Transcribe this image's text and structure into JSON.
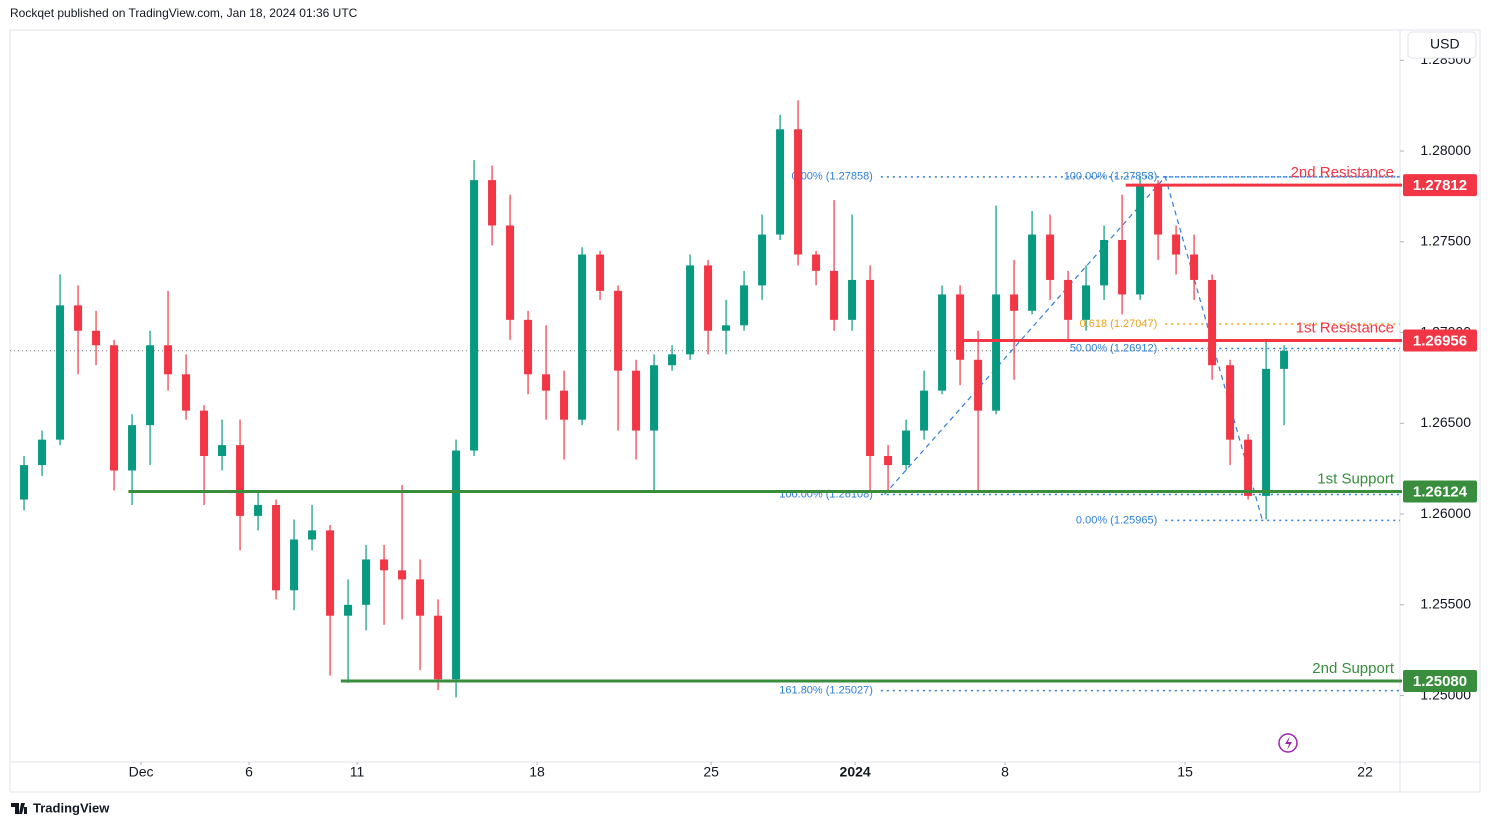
{
  "chart_data": {
    "type": "candlestick",
    "header": "Rockqet published on TradingView.com, Jan 18, 2024 01:36 UTC",
    "currency": "USD",
    "footer": "TradingView",
    "up_color": "#089981",
    "down_color": "#f23645",
    "xlim": [
      -0.78,
      76.44
    ],
    "xticks": [
      {
        "value": 6.5,
        "label": "Dec"
      },
      {
        "value": 12.5,
        "label": "6"
      },
      {
        "value": 18.5,
        "label": "11"
      },
      {
        "value": 28.5,
        "label": "18"
      },
      {
        "value": 38.17,
        "label": "25"
      },
      {
        "value": 46.17,
        "label": "2024"
      },
      {
        "value": 54.5,
        "label": "8"
      },
      {
        "value": 64.5,
        "label": "15"
      },
      {
        "value": 74.5,
        "label": "22"
      }
    ],
    "ylim": [
      1.24634,
      1.28667
    ],
    "yticks": [
      {
        "value": 1.25,
        "label": "1.25000"
      },
      {
        "value": 1.255,
        "label": "1.25500"
      },
      {
        "value": 1.26,
        "label": "1.26000"
      },
      {
        "value": 1.265,
        "label": "1.26500"
      },
      {
        "value": 1.27,
        "label": "1.27000"
      },
      {
        "value": 1.275,
        "label": "1.27500"
      },
      {
        "value": 1.28,
        "label": "1.28000"
      },
      {
        "value": 1.285,
        "label": "1.28500"
      }
    ],
    "open": [
      1.2608,
      1.2627,
      1.2641,
      1.2715,
      1.2701,
      1.2693,
      1.2624,
      1.2649,
      1.2693,
      1.2677,
      1.2657,
      1.2632,
      1.2638,
      1.2599,
      1.2605,
      1.2558,
      1.2586,
      1.2591,
      1.2544,
      1.255,
      1.2575,
      1.2569,
      1.2564,
      1.2544,
      1.2509,
      1.2635,
      1.2784,
      1.2759,
      1.2707,
      1.2677,
      1.2668,
      1.2652,
      1.2743,
      1.2723,
      1.2679,
      1.2646,
      1.2682,
      1.2688,
      1.2737,
      1.2701,
      1.2704,
      1.2726,
      1.2754,
      1.2812,
      1.2743,
      1.2734,
      1.2707,
      1.2729,
      1.2632,
      1.2627,
      1.2646,
      1.2668,
      1.2721,
      1.2685,
      1.2657,
      1.2721,
      1.2712,
      1.2754,
      1.2729,
      1.2707,
      1.2726,
      1.2751,
      1.2721,
      1.2781,
      1.2754,
      1.2743,
      1.2729,
      1.2682,
      1.2641,
      1.261,
      1.268
    ],
    "high": [
      1.2632,
      1.2646,
      1.2732,
      1.2726,
      1.2712,
      1.2696,
      1.2655,
      1.2701,
      1.2723,
      1.2688,
      1.266,
      1.2652,
      1.2652,
      1.2613,
      1.2608,
      1.2597,
      1.2605,
      1.2594,
      1.2564,
      1.2583,
      1.2583,
      1.2616,
      1.2575,
      1.2553,
      1.2641,
      1.2795,
      1.2792,
      1.2776,
      1.2712,
      1.2704,
      1.2679,
      1.2747,
      1.2745,
      1.2726,
      1.2685,
      1.2688,
      1.2693,
      1.2743,
      1.274,
      1.2718,
      1.2734,
      1.2765,
      1.282,
      1.2828,
      1.2745,
      1.2773,
      1.2765,
      1.2737,
      1.2638,
      1.2652,
      1.2679,
      1.2726,
      1.2726,
      1.2701,
      1.277,
      1.274,
      1.2767,
      1.2765,
      1.2734,
      1.2737,
      1.2759,
      1.2776,
      1.2785,
      1.2784,
      1.2759,
      1.2754,
      1.2732,
      1.2685,
      1.2644,
      1.2696,
      1.2693
    ],
    "low": [
      1.2602,
      1.2621,
      1.2638,
      1.2677,
      1.2682,
      1.2613,
      1.2605,
      1.2627,
      1.2668,
      1.2652,
      1.2605,
      1.2624,
      1.258,
      1.2591,
      1.2553,
      1.2547,
      1.258,
      1.2511,
      1.2507,
      1.2536,
      1.2539,
      1.2542,
      1.2514,
      1.2503,
      1.2499,
      1.2632,
      1.2748,
      1.2696,
      1.2666,
      1.2652,
      1.263,
      1.2649,
      1.2718,
      1.2646,
      1.263,
      1.2613,
      1.2679,
      1.2685,
      1.2688,
      1.2688,
      1.2701,
      1.2718,
      1.2751,
      1.2737,
      1.2726,
      1.2701,
      1.2701,
      1.2613,
      1.2613,
      1.2624,
      1.2641,
      1.2666,
      1.2671,
      1.2613,
      1.2655,
      1.2674,
      1.271,
      1.2718,
      1.2696,
      1.2701,
      1.2718,
      1.271,
      1.2718,
      1.274,
      1.2732,
      1.2718,
      1.2674,
      1.2627,
      1.2608,
      1.2597,
      1.2649
    ],
    "close": [
      1.2627,
      1.2641,
      1.2715,
      1.2701,
      1.2693,
      1.2624,
      1.2649,
      1.2693,
      1.2677,
      1.2657,
      1.2632,
      1.2638,
      1.2599,
      1.2605,
      1.2558,
      1.2586,
      1.2591,
      1.2544,
      1.255,
      1.2575,
      1.2569,
      1.2564,
      1.2544,
      1.2509,
      1.2635,
      1.2784,
      1.2759,
      1.2707,
      1.2677,
      1.2668,
      1.2652,
      1.2743,
      1.2723,
      1.2679,
      1.2646,
      1.2682,
      1.2688,
      1.2737,
      1.2701,
      1.2704,
      1.2726,
      1.2754,
      1.2812,
      1.2743,
      1.2734,
      1.2707,
      1.2729,
      1.2632,
      1.2627,
      1.2646,
      1.2668,
      1.2721,
      1.2685,
      1.2657,
      1.2721,
      1.2712,
      1.2754,
      1.2729,
      1.2707,
      1.2726,
      1.2751,
      1.2721,
      1.2781,
      1.2754,
      1.2743,
      1.2729,
      1.2682,
      1.2641,
      1.261,
      1.268,
      1.269
    ],
    "levels": [
      {
        "name": "2nd Resistance",
        "value": 1.27812,
        "value_label": "1.27812",
        "color": "#f23645",
        "x_start": 61.2
      },
      {
        "name": "1st Resistance",
        "value": 1.26956,
        "value_label": "1.26956",
        "color": "#f23645",
        "x_start": 52.1
      },
      {
        "name": "1st Support",
        "value": 1.26124,
        "value_label": "1.26124",
        "color": "#388e3c",
        "x_start": 5.8
      },
      {
        "name": "2nd Support",
        "value": 1.2508,
        "value_label": "1.25080",
        "color": "#388e3c",
        "x_start": 17.6
      }
    ],
    "fib_levels": [
      {
        "label": "0.00% (1.27858)",
        "value": 1.27858,
        "x_start": 47.6,
        "color": "#2f7fd8"
      },
      {
        "label": "100.00% (1.27858)",
        "value": 1.27858,
        "x_start": 63.4,
        "color": "#2f7fd8"
      },
      {
        "label": "0.618 (1.27047)",
        "value": 1.27047,
        "x_start": 63.4,
        "color": "#e8a317"
      },
      {
        "label": "50.00% (1.26912)",
        "value": 1.26912,
        "x_start": 63.4,
        "color": "#2f7fd8"
      },
      {
        "label": "100.00% (1.26108)",
        "value": 1.26108,
        "x_start": 47.6,
        "color": "#2f7fd8"
      },
      {
        "label": "0.00% (1.25965)",
        "value": 1.25965,
        "x_start": 63.4,
        "color": "#2f7fd8"
      },
      {
        "label": "161.80% (1.25027)",
        "value": 1.25027,
        "x_start": 47.6,
        "color": "#2f7fd8"
      }
    ],
    "trend_line": {
      "x": [
        47.8,
        63.4,
        68.8
      ],
      "y": [
        1.26108,
        1.27858,
        1.25965
      ]
    }
  }
}
